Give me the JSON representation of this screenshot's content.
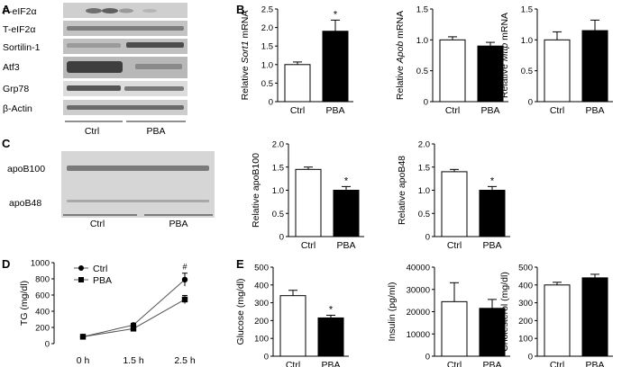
{
  "panels": {
    "a": {
      "letter": "A",
      "rows": [
        "P-eIF2α",
        "T-eIF2α",
        "Sortilin-1",
        "Atf3",
        "Grp78",
        "β-Actin"
      ],
      "groups": [
        "Ctrl",
        "PBA"
      ]
    },
    "c": {
      "letter": "C",
      "rows": [
        "apoB100",
        "apoB48"
      ],
      "groups": [
        "Ctrl",
        "PBA"
      ]
    },
    "b": {
      "letter": "B"
    },
    "d": {
      "letter": "D"
    },
    "e": {
      "letter": "E"
    }
  },
  "chart_data": [
    {
      "id": "sort1",
      "type": "bar",
      "categories": [
        "Ctrl",
        "PBA"
      ],
      "values": [
        1.0,
        1.9
      ],
      "errors": [
        0.07,
        0.3
      ],
      "ylabel": "Relative Sort1 mRNA",
      "ylim": [
        0,
        2.5
      ],
      "yticks": [
        "0",
        "0.5",
        "1.0",
        "1.5",
        "2.0",
        "2.5"
      ],
      "significance": [
        "",
        "*"
      ],
      "colors": [
        "#ffffff",
        "#000000"
      ]
    },
    {
      "id": "apob",
      "type": "bar",
      "categories": [
        "Ctrl",
        "PBA"
      ],
      "values": [
        1.0,
        0.9
      ],
      "errors": [
        0.05,
        0.06
      ],
      "ylabel": "Relative Apob mRNA",
      "ylim": [
        0,
        1.5
      ],
      "yticks": [
        "0",
        "0.5",
        "1.0",
        "1.5"
      ],
      "significance": [
        "",
        ""
      ],
      "colors": [
        "#ffffff",
        "#000000"
      ]
    },
    {
      "id": "mttp",
      "type": "bar",
      "categories": [
        "Ctrl",
        "PBA"
      ],
      "values": [
        1.0,
        1.15
      ],
      "errors": [
        0.13,
        0.17
      ],
      "ylabel": "Relative Mttp mRNA",
      "ylim": [
        0,
        1.5
      ],
      "yticks": [
        "0",
        "0.5",
        "1.0",
        "1.5"
      ],
      "significance": [
        "",
        ""
      ],
      "colors": [
        "#ffffff",
        "#000000"
      ]
    },
    {
      "id": "apob100",
      "type": "bar",
      "categories": [
        "Ctrl",
        "PBA"
      ],
      "values": [
        1.45,
        1.0
      ],
      "errors": [
        0.05,
        0.08
      ],
      "ylabel": "Relative apoB100",
      "ylim": [
        0,
        2.0
      ],
      "yticks": [
        "0",
        "0.5",
        "1.0",
        "1.5",
        "2.0"
      ],
      "significance": [
        "",
        "*"
      ],
      "colors": [
        "#ffffff",
        "#000000"
      ]
    },
    {
      "id": "apob48",
      "type": "bar",
      "categories": [
        "Ctrl",
        "PBA"
      ],
      "values": [
        1.4,
        1.0
      ],
      "errors": [
        0.05,
        0.08
      ],
      "ylabel": "Relative apoB48",
      "ylim": [
        0,
        2.0
      ],
      "yticks": [
        "0",
        "0.5",
        "1.0",
        "1.5",
        "2.0"
      ],
      "significance": [
        "",
        "*"
      ],
      "colors": [
        "#ffffff",
        "#000000"
      ]
    },
    {
      "id": "tg",
      "type": "line",
      "x": [
        "0 h",
        "1.5 h",
        "2.5 h"
      ],
      "series": [
        {
          "name": "Ctrl",
          "values": [
            85,
            230,
            790
          ],
          "errors": [
            10,
            20,
            80
          ]
        },
        {
          "name": "PBA",
          "values": [
            85,
            185,
            545
          ],
          "errors": [
            10,
            20,
            50
          ]
        }
      ],
      "ylabel": "TG (mg/dl)",
      "ylim": [
        0,
        1000
      ],
      "yticks": [
        "0",
        "200",
        "400",
        "600",
        "800",
        "1000"
      ],
      "annotation": "#"
    },
    {
      "id": "glucose",
      "type": "bar",
      "categories": [
        "Ctrl",
        "PBA"
      ],
      "values": [
        340,
        215
      ],
      "errors": [
        30,
        15
      ],
      "ylabel": "Glucose (mg/dl)",
      "ylim": [
        0,
        500
      ],
      "yticks": [
        "0",
        "100",
        "200",
        "300",
        "400",
        "500"
      ],
      "significance": [
        "",
        "*"
      ],
      "colors": [
        "#ffffff",
        "#000000"
      ]
    },
    {
      "id": "insulin",
      "type": "bar",
      "categories": [
        "Ctrl",
        "PBA"
      ],
      "values": [
        24500,
        21500
      ],
      "errors": [
        8500,
        4000
      ],
      "ylabel": "Insulin (pg/ml)",
      "ylim": [
        0,
        40000
      ],
      "yticks": [
        "0",
        "10000",
        "20000",
        "30000",
        "40000"
      ],
      "significance": [
        "",
        ""
      ],
      "colors": [
        "#ffffff",
        "#000000"
      ]
    },
    {
      "id": "cholesterol",
      "type": "bar",
      "categories": [
        "Ctrl",
        "PBA"
      ],
      "values": [
        400,
        440
      ],
      "errors": [
        15,
        20
      ],
      "ylabel": "Cholesterol (mg/dl)",
      "ylim": [
        0,
        500
      ],
      "yticks": [
        "0",
        "100",
        "200",
        "300",
        "400",
        "500"
      ],
      "significance": [
        "",
        ""
      ],
      "colors": [
        "#ffffff",
        "#000000"
      ]
    }
  ]
}
